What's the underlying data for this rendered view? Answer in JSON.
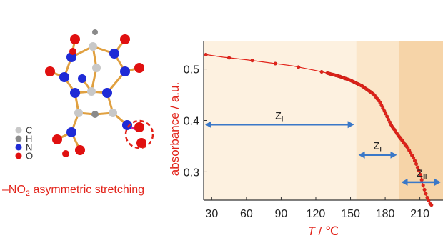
{
  "legend": {
    "items": [
      {
        "label": "C",
        "color": "#c8c8c8"
      },
      {
        "label": "H",
        "color": "#8a8a8a"
      },
      {
        "label": "N",
        "color": "#1f2bd6"
      },
      {
        "label": "O",
        "color": "#e01010"
      }
    ]
  },
  "caption": {
    "prefix": "–NO",
    "sub": "2",
    "suffix": " asymmetric stretching"
  },
  "chart_data": {
    "type": "line",
    "xlabel_main": "T",
    "xlabel_unit": " / ℃",
    "ylabel": "absorbance / a.u.",
    "xlim": [
      23,
      230
    ],
    "ylim": [
      0.245,
      0.555
    ],
    "xticks": [
      30,
      60,
      90,
      120,
      150,
      180,
      210
    ],
    "yticks": [
      0.3,
      0.4,
      0.5
    ],
    "ytick_labels": [
      "0.3",
      "0.4",
      "0.5"
    ],
    "series": [
      {
        "color": "#e2231a",
        "points": [
          [
            25,
            0.528
          ],
          [
            40,
            0.523
          ],
          [
            60,
            0.518
          ],
          [
            80,
            0.512
          ],
          [
            100,
            0.506
          ],
          [
            120,
            0.497
          ],
          [
            130,
            0.492
          ],
          [
            140,
            0.486
          ],
          [
            150,
            0.478
          ],
          [
            160,
            0.467
          ],
          [
            170,
            0.451
          ],
          [
            175,
            0.437
          ],
          [
            180,
            0.415
          ],
          [
            185,
            0.392
          ],
          [
            190,
            0.375
          ],
          [
            195,
            0.36
          ],
          [
            200,
            0.345
          ],
          [
            205,
            0.325
          ],
          [
            210,
            0.298
          ],
          [
            213,
            0.272
          ],
          [
            216,
            0.252
          ],
          [
            219,
            0.237
          ],
          [
            221,
            0.234
          ]
        ]
      }
    ],
    "zones": [
      {
        "label": "Z",
        "sub": "Ⅰ",
        "from": 25,
        "to": 155,
        "fill": "#fdf1e0",
        "arrow_y": 0.392
      },
      {
        "label": "Z",
        "sub": "Ⅱ",
        "from": 155,
        "to": 192,
        "fill": "#fbe6c9",
        "arrow_y": 0.333
      },
      {
        "label": "Z",
        "sub": "Ⅲ",
        "from": 192,
        "to": 230,
        "fill": "#f6d4a8",
        "arrow_y": 0.28
      }
    ]
  }
}
